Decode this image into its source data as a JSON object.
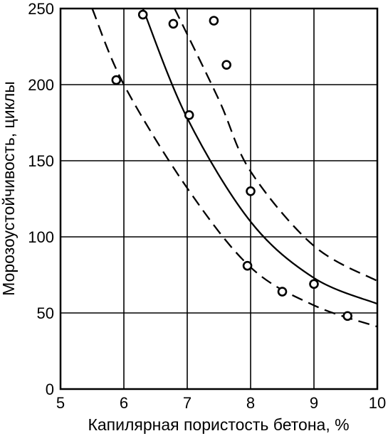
{
  "chart_data": {
    "type": "scatter",
    "title": "",
    "xlabel": "Капилярная пористость бетона, %",
    "ylabel": "Морозоустойчивость, циклы",
    "xlim": [
      5,
      10
    ],
    "ylim": [
      0,
      250
    ],
    "x_ticks": [
      5,
      6,
      7,
      8,
      9,
      10
    ],
    "y_ticks": [
      0,
      50,
      100,
      150,
      200,
      250
    ],
    "x_tick_labels": [
      "5",
      "6",
      "7",
      "8",
      "9",
      "10"
    ],
    "y_tick_labels": [
      "0",
      "50",
      "100",
      "150",
      "200",
      "250"
    ],
    "grid": true,
    "series": [
      {
        "kind": "points",
        "x": [
          5.88,
          6.3,
          6.78,
          7.03,
          7.42,
          7.62,
          7.95,
          8.0,
          8.5,
          9.0,
          9.53
        ],
        "y": [
          203,
          246,
          240,
          180,
          242,
          213,
          81,
          130,
          64,
          69,
          48
        ]
      },
      {
        "kind": "fit-line",
        "style": "solid",
        "x": [
          6.3,
          7.0,
          8.0,
          9.0,
          10.0
        ],
        "y": [
          250,
          178,
          110,
          73,
          56
        ]
      },
      {
        "kind": "bound-line",
        "style": "dashed",
        "x": [
          6.8,
          7.5,
          8.0,
          9.0,
          10.0
        ],
        "y": [
          250,
          190,
          143,
          94,
          71
        ]
      },
      {
        "kind": "bound-line",
        "style": "dashed",
        "x": [
          5.5,
          6.0,
          7.0,
          8.0,
          9.0,
          10.0
        ],
        "y": [
          250,
          200,
          132,
          80,
          55,
          41
        ]
      }
    ]
  }
}
